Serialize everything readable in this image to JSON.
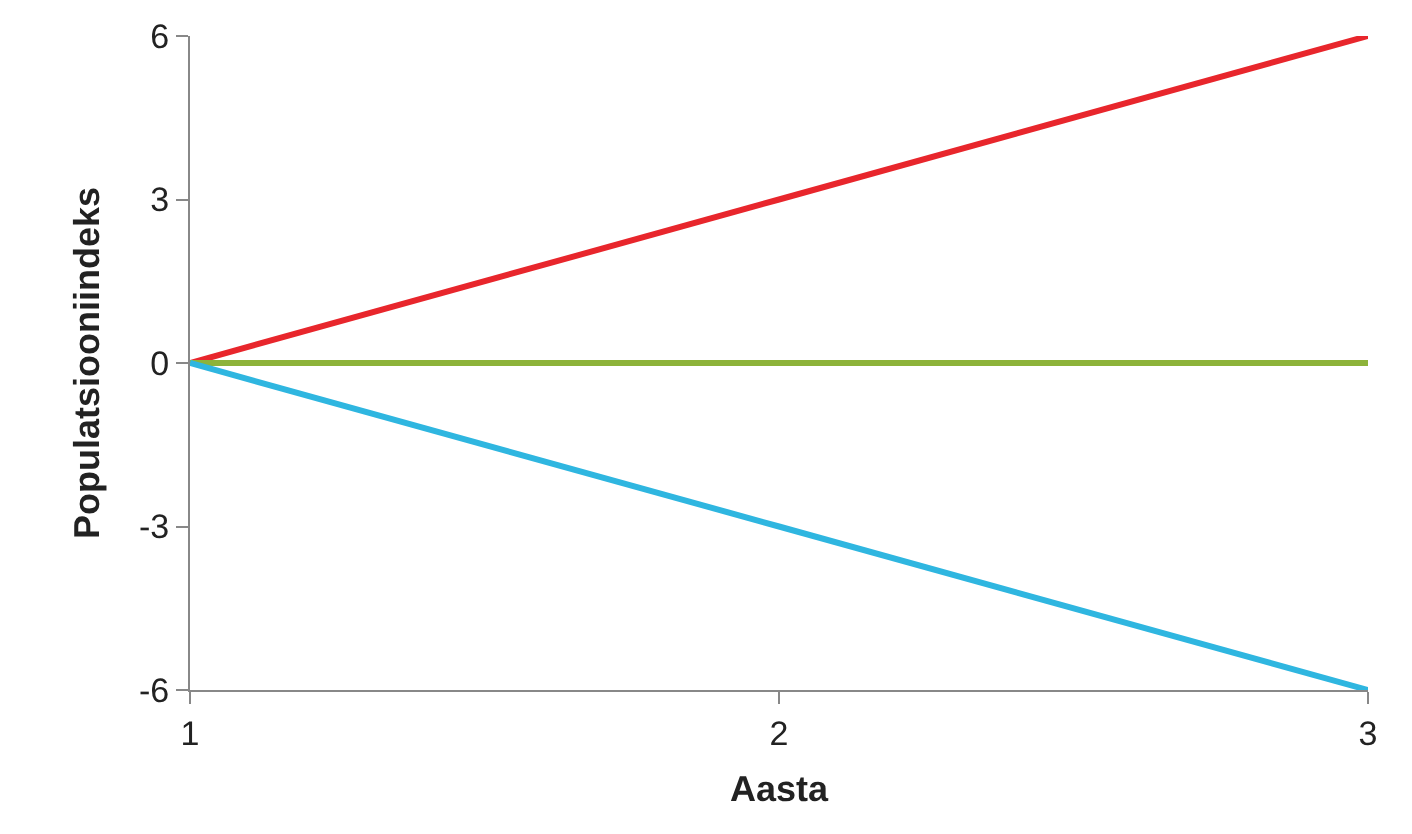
{
  "chart_data": {
    "type": "line",
    "xlabel": "Aasta",
    "ylabel": "Populatsiooniindeks",
    "x": [
      1,
      2,
      3
    ],
    "series": [
      {
        "color": "#e8262c",
        "values": [
          0,
          3,
          6
        ]
      },
      {
        "color": "#8db33a",
        "values": [
          0,
          0,
          0
        ]
      },
      {
        "color": "#2fb6e0",
        "values": [
          0,
          -3,
          -6
        ]
      }
    ],
    "xlim": [
      1,
      3
    ],
    "xticks": [
      1,
      2,
      3
    ],
    "ylim": [
      -6,
      6
    ],
    "yticks": [
      -6,
      -3,
      0,
      3,
      6
    ],
    "grid": false,
    "marker": "none",
    "line_style": "solid"
  }
}
